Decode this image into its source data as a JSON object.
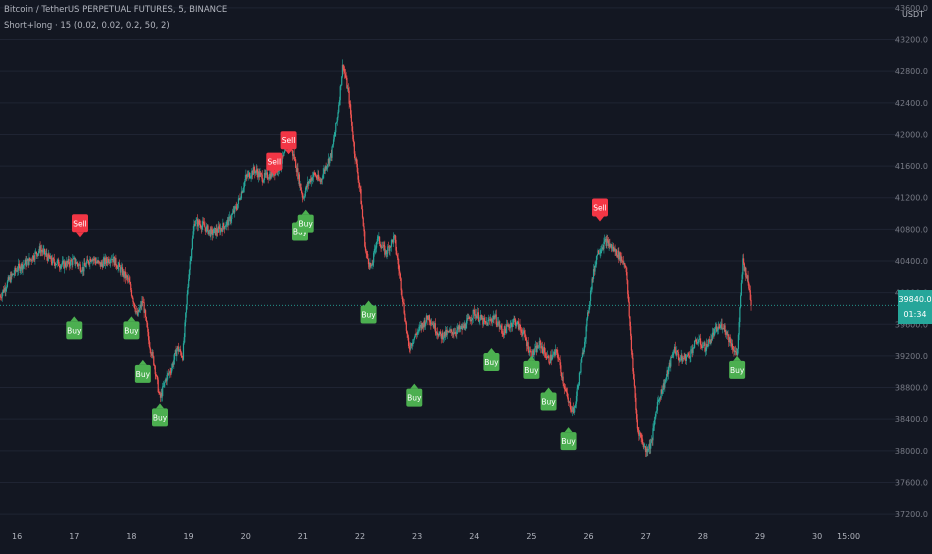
{
  "header": {
    "title": "Bitcoin / TetherUS PERPETUAL FUTURES, 5, BINANCE",
    "indicator": "Short+long · 15 (0.02, 0.02, 0.2, 50, 2)"
  },
  "price_axis": {
    "unit": "USDT",
    "current_price": "39840.0",
    "countdown": "01:34",
    "current_value": 39840
  },
  "colors": {
    "background": "#131722",
    "grid": "#1f2433",
    "up": "#26a69a",
    "down": "#ef5350",
    "buy": "#4caf50",
    "sell": "#f23645",
    "price_line": "#26a69a"
  },
  "chart_data": {
    "type": "candlestick",
    "x_ticks": [
      "16",
      "17",
      "18",
      "19",
      "20",
      "21",
      "22",
      "23",
      "24",
      "25",
      "26",
      "27",
      "28",
      "29",
      "30",
      "15:00"
    ],
    "x_tick_positions": [
      0,
      1,
      2,
      3,
      4,
      5,
      6,
      7,
      8,
      9,
      10,
      11,
      12,
      13,
      14,
      14.55
    ],
    "x_range": [
      -0.3,
      15.45
    ],
    "y_ticks": [
      "43600.0",
      "43200.0",
      "42800.0",
      "42400.0",
      "42000.0",
      "41600.0",
      "41200.0",
      "40800.0",
      "40400.0",
      "40000.0",
      "39600.0",
      "39200.0",
      "38800.0",
      "38400.0",
      "38000.0",
      "37600.0",
      "37200.0"
    ],
    "y_range": [
      37100,
      43700
    ],
    "price_path": [
      [
        -0.3,
        39950
      ],
      [
        -0.15,
        40150
      ],
      [
        0.0,
        40300
      ],
      [
        0.2,
        40400
      ],
      [
        0.4,
        40550
      ],
      [
        0.6,
        40400
      ],
      [
        0.8,
        40350
      ],
      [
        1.0,
        40400
      ],
      [
        1.15,
        40300
      ],
      [
        1.3,
        40450
      ],
      [
        1.45,
        40350
      ],
      [
        1.65,
        40450
      ],
      [
        1.8,
        40300
      ],
      [
        1.95,
        40150
      ],
      [
        2.1,
        39700
      ],
      [
        2.2,
        39900
      ],
      [
        2.3,
        39400
      ],
      [
        2.4,
        39100
      ],
      [
        2.5,
        38650
      ],
      [
        2.6,
        38900
      ],
      [
        2.7,
        39050
      ],
      [
        2.8,
        39300
      ],
      [
        2.9,
        39200
      ],
      [
        3.0,
        40200
      ],
      [
        3.1,
        40900
      ],
      [
        3.25,
        40850
      ],
      [
        3.4,
        40750
      ],
      [
        3.55,
        40800
      ],
      [
        3.7,
        40900
      ],
      [
        3.85,
        41100
      ],
      [
        4.0,
        41450
      ],
      [
        4.15,
        41550
      ],
      [
        4.3,
        41450
      ],
      [
        4.45,
        41500
      ],
      [
        4.6,
        41600
      ],
      [
        4.75,
        41900
      ],
      [
        4.85,
        41700
      ],
      [
        5.0,
        41200
      ],
      [
        5.1,
        41400
      ],
      [
        5.2,
        41500
      ],
      [
        5.3,
        41400
      ],
      [
        5.4,
        41600
      ],
      [
        5.5,
        41750
      ],
      [
        5.6,
        42200
      ],
      [
        5.7,
        42900
      ],
      [
        5.8,
        42500
      ],
      [
        5.9,
        41800
      ],
      [
        6.0,
        41300
      ],
      [
        6.05,
        40900
      ],
      [
        6.1,
        40500
      ],
      [
        6.2,
        40300
      ],
      [
        6.3,
        40700
      ],
      [
        6.45,
        40500
      ],
      [
        6.6,
        40700
      ],
      [
        6.7,
        40200
      ],
      [
        6.85,
        39300
      ],
      [
        7.0,
        39500
      ],
      [
        7.2,
        39700
      ],
      [
        7.4,
        39450
      ],
      [
        7.6,
        39500
      ],
      [
        7.8,
        39550
      ],
      [
        8.0,
        39750
      ],
      [
        8.2,
        39600
      ],
      [
        8.35,
        39700
      ],
      [
        8.5,
        39500
      ],
      [
        8.7,
        39650
      ],
      [
        8.85,
        39500
      ],
      [
        9.0,
        39200
      ],
      [
        9.15,
        39350
      ],
      [
        9.3,
        39150
      ],
      [
        9.45,
        39250
      ],
      [
        9.55,
        38900
      ],
      [
        9.65,
        38600
      ],
      [
        9.75,
        38500
      ],
      [
        9.85,
        39000
      ],
      [
        9.95,
        39500
      ],
      [
        10.05,
        40100
      ],
      [
        10.15,
        40500
      ],
      [
        10.3,
        40650
      ],
      [
        10.5,
        40500
      ],
      [
        10.65,
        40350
      ],
      [
        10.75,
        39300
      ],
      [
        10.85,
        38300
      ],
      [
        11.0,
        38000
      ],
      [
        11.1,
        38100
      ],
      [
        11.2,
        38600
      ],
      [
        11.35,
        38900
      ],
      [
        11.5,
        39300
      ],
      [
        11.6,
        39150
      ],
      [
        11.75,
        39200
      ],
      [
        11.9,
        39400
      ],
      [
        12.05,
        39300
      ],
      [
        12.2,
        39500
      ],
      [
        12.35,
        39600
      ],
      [
        12.5,
        39350
      ],
      [
        12.6,
        39200
      ],
      [
        12.7,
        40400
      ],
      [
        12.8,
        40100
      ],
      [
        12.85,
        39840
      ]
    ],
    "signals": [
      {
        "label": "Sell",
        "x": 1.1,
        "price": 40700,
        "type": "sell"
      },
      {
        "label": "Buy",
        "x": 1.0,
        "price": 39700,
        "type": "buy"
      },
      {
        "label": "Buy",
        "x": 2.0,
        "price": 39700,
        "type": "buy"
      },
      {
        "label": "Buy",
        "x": 2.2,
        "price": 39150,
        "type": "buy"
      },
      {
        "label": "Buy",
        "x": 2.5,
        "price": 38600,
        "type": "buy"
      },
      {
        "label": "Sell",
        "x": 4.5,
        "price": 41480,
        "type": "sell"
      },
      {
        "label": "Sell",
        "x": 4.75,
        "price": 41750,
        "type": "sell"
      },
      {
        "label": "Buy",
        "x": 4.95,
        "price": 40950,
        "type": "buy"
      },
      {
        "label": "Buy",
        "x": 5.05,
        "price": 41050,
        "type": "buy"
      },
      {
        "label": "Buy",
        "x": 6.15,
        "price": 39900,
        "type": "buy"
      },
      {
        "label": "Buy",
        "x": 6.95,
        "price": 38850,
        "type": "buy"
      },
      {
        "label": "Buy",
        "x": 8.3,
        "price": 39300,
        "type": "buy"
      },
      {
        "label": "Buy",
        "x": 9.0,
        "price": 39200,
        "type": "buy"
      },
      {
        "label": "Buy",
        "x": 9.3,
        "price": 38800,
        "type": "buy"
      },
      {
        "label": "Buy",
        "x": 9.65,
        "price": 38300,
        "type": "buy"
      },
      {
        "label": "Sell",
        "x": 10.2,
        "price": 40900,
        "type": "sell"
      },
      {
        "label": "Buy",
        "x": 12.6,
        "price": 39200,
        "type": "buy"
      }
    ]
  }
}
